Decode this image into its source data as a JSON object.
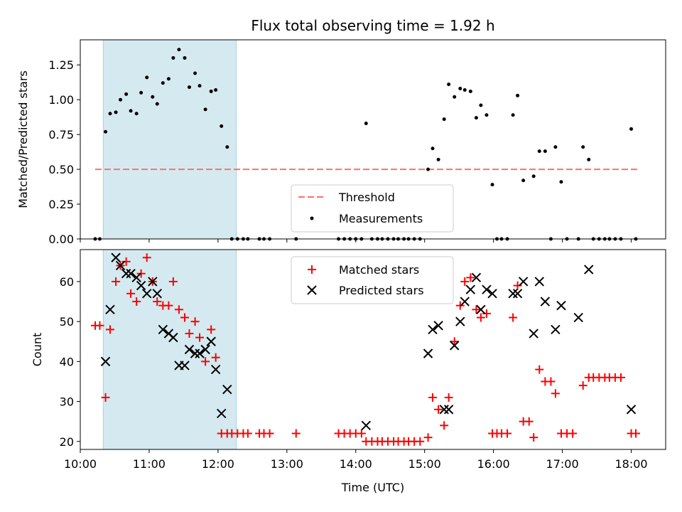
{
  "chart_data": [
    {
      "type": "scatter",
      "title": "Flux total observing time = 1.92 h",
      "xlabel": "",
      "ylabel": "Matched/Predicted stars",
      "xlim": [
        "10:00",
        "18:30"
      ],
      "ylim": [
        0,
        1.43
      ],
      "yticks": [
        "0.00",
        "0.25",
        "0.50",
        "0.75",
        "1.00",
        "1.25"
      ],
      "shaded_region": {
        "x": [
          "10:20",
          "12:16"
        ],
        "color": "#d4eaf0"
      },
      "threshold": {
        "name": "Threshold",
        "y": 0.5,
        "x": [
          "10:13",
          "18:06"
        ],
        "color": "#ff7070"
      },
      "legend": {
        "placement": "lower-center",
        "entries": [
          "Threshold",
          "Measurements"
        ]
      },
      "series": [
        {
          "name": "Measurements",
          "marker": "dot",
          "color": "#000000",
          "points": [
            [
              "10:13",
              0
            ],
            [
              "10:17",
              0
            ],
            [
              "10:22",
              0.77
            ],
            [
              "10:26",
              0.9
            ],
            [
              "10:31",
              0.91
            ],
            [
              "10:35",
              1.0
            ],
            [
              "10:40",
              1.04
            ],
            [
              "10:44",
              0.92
            ],
            [
              "10:49",
              0.9
            ],
            [
              "10:53",
              1.05
            ],
            [
              "10:58",
              1.16
            ],
            [
              "11:03",
              1.02
            ],
            [
              "11:07",
              0.97
            ],
            [
              "11:12",
              1.12
            ],
            [
              "11:17",
              1.15
            ],
            [
              "11:21",
              1.3
            ],
            [
              "11:26",
              1.36
            ],
            [
              "11:31",
              1.3
            ],
            [
              "11:35",
              1.09
            ],
            [
              "11:40",
              1.19
            ],
            [
              "11:44",
              1.1
            ],
            [
              "11:49",
              0.93
            ],
            [
              "11:54",
              1.06
            ],
            [
              "11:58",
              1.07
            ],
            [
              "12:03",
              0.81
            ],
            [
              "12:08",
              0.66
            ],
            [
              "12:12",
              0
            ],
            [
              "12:17",
              0
            ],
            [
              "12:22",
              0
            ],
            [
              "12:26",
              0
            ],
            [
              "12:36",
              0
            ],
            [
              "12:40",
              0
            ],
            [
              "12:45",
              0
            ],
            [
              "13:08",
              0
            ],
            [
              "13:45",
              0
            ],
            [
              "13:50",
              0
            ],
            [
              "13:55",
              0
            ],
            [
              "14:00",
              0
            ],
            [
              "14:05",
              0
            ],
            [
              "14:09",
              0.83
            ],
            [
              "14:14",
              0
            ],
            [
              "14:19",
              0
            ],
            [
              "14:23",
              0
            ],
            [
              "14:28",
              0
            ],
            [
              "14:33",
              0
            ],
            [
              "14:37",
              0
            ],
            [
              "14:42",
              0
            ],
            [
              "14:46",
              0
            ],
            [
              "14:51",
              0
            ],
            [
              "14:56",
              0
            ],
            [
              "15:03",
              0.5
            ],
            [
              "15:07",
              0.65
            ],
            [
              "15:12",
              0.57
            ],
            [
              "15:17",
              0.86
            ],
            [
              "15:21",
              1.11
            ],
            [
              "15:26",
              1.02
            ],
            [
              "15:31",
              1.08
            ],
            [
              "15:35",
              1.07
            ],
            [
              "15:40",
              1.06
            ],
            [
              "15:45",
              0.87
            ],
            [
              "15:49",
              0.96
            ],
            [
              "15:54",
              0.89
            ],
            [
              "15:59",
              0.39
            ],
            [
              "16:03",
              0
            ],
            [
              "16:07",
              0
            ],
            [
              "16:12",
              0
            ],
            [
              "16:17",
              0.89
            ],
            [
              "16:21",
              1.03
            ],
            [
              "16:26",
              0.42
            ],
            [
              "16:35",
              0.45
            ],
            [
              "16:40",
              0.63
            ],
            [
              "16:45",
              0.63
            ],
            [
              "16:50",
              0
            ],
            [
              "16:54",
              0.66
            ],
            [
              "16:59",
              0.41
            ],
            [
              "17:04",
              0
            ],
            [
              "17:14",
              0
            ],
            [
              "17:18",
              0.66
            ],
            [
              "17:23",
              0.57
            ],
            [
              "17:27",
              0
            ],
            [
              "17:32",
              0
            ],
            [
              "17:37",
              0
            ],
            [
              "17:41",
              0
            ],
            [
              "17:46",
              0
            ],
            [
              "17:51",
              0
            ],
            [
              "18:00",
              0.79
            ],
            [
              "18:04",
              0
            ]
          ]
        }
      ]
    },
    {
      "type": "scatter",
      "title": "",
      "xlabel": "Time (UTC)",
      "ylabel": "Count",
      "xlim": [
        "10:00",
        "18:30"
      ],
      "ylim": [
        18,
        68
      ],
      "xticks": [
        "10:00",
        "11:00",
        "12:00",
        "13:00",
        "14:00",
        "15:00",
        "16:00",
        "17:00",
        "18:00"
      ],
      "yticks": [
        "20",
        "30",
        "40",
        "50",
        "60"
      ],
      "shaded_region": {
        "x": [
          "10:20",
          "12:16"
        ],
        "color": "#d4eaf0"
      },
      "legend": {
        "placement": "upper-center",
        "entries": [
          "Matched stars",
          "Predicted stars"
        ]
      },
      "series": [
        {
          "name": "Matched stars",
          "marker": "plus",
          "color": "#ff0000",
          "points": [
            [
              "10:13",
              49
            ],
            [
              "10:17",
              49
            ],
            [
              "10:22",
              31
            ],
            [
              "10:26",
              48
            ],
            [
              "10:31",
              60
            ],
            [
              "10:35",
              64
            ],
            [
              "10:40",
              65
            ],
            [
              "10:44",
              57
            ],
            [
              "10:49",
              55
            ],
            [
              "10:53",
              62
            ],
            [
              "10:58",
              66
            ],
            [
              "11:03",
              60
            ],
            [
              "11:07",
              55
            ],
            [
              "11:12",
              54
            ],
            [
              "11:17",
              54
            ],
            [
              "11:21",
              60
            ],
            [
              "11:26",
              53
            ],
            [
              "11:31",
              51
            ],
            [
              "11:35",
              47
            ],
            [
              "11:40",
              50
            ],
            [
              "11:44",
              46
            ],
            [
              "11:49",
              40
            ],
            [
              "11:54",
              48
            ],
            [
              "11:58",
              41
            ],
            [
              "12:03",
              22
            ],
            [
              "12:08",
              22
            ],
            [
              "12:12",
              22
            ],
            [
              "12:17",
              22
            ],
            [
              "12:22",
              22
            ],
            [
              "12:26",
              22
            ],
            [
              "12:36",
              22
            ],
            [
              "12:40",
              22
            ],
            [
              "12:45",
              22
            ],
            [
              "13:08",
              22
            ],
            [
              "13:45",
              22
            ],
            [
              "13:50",
              22
            ],
            [
              "13:55",
              22
            ],
            [
              "14:00",
              22
            ],
            [
              "14:05",
              22
            ],
            [
              "14:09",
              20
            ],
            [
              "14:14",
              20
            ],
            [
              "14:19",
              20
            ],
            [
              "14:23",
              20
            ],
            [
              "14:28",
              20
            ],
            [
              "14:33",
              20
            ],
            [
              "14:37",
              20
            ],
            [
              "14:42",
              20
            ],
            [
              "14:46",
              20
            ],
            [
              "14:51",
              20
            ],
            [
              "14:56",
              20
            ],
            [
              "15:03",
              21
            ],
            [
              "15:07",
              31
            ],
            [
              "15:12",
              28
            ],
            [
              "15:17",
              24
            ],
            [
              "15:21",
              31
            ],
            [
              "15:26",
              45
            ],
            [
              "15:31",
              54
            ],
            [
              "15:35",
              60
            ],
            [
              "15:40",
              61
            ],
            [
              "15:45",
              53
            ],
            [
              "15:49",
              51
            ],
            [
              "15:54",
              52
            ],
            [
              "15:59",
              22
            ],
            [
              "16:03",
              22
            ],
            [
              "16:07",
              22
            ],
            [
              "16:12",
              22
            ],
            [
              "16:17",
              51
            ],
            [
              "16:21",
              59
            ],
            [
              "16:26",
              25
            ],
            [
              "16:31",
              25
            ],
            [
              "16:35",
              21
            ],
            [
              "16:40",
              38
            ],
            [
              "16:45",
              35
            ],
            [
              "16:50",
              35
            ],
            [
              "16:54",
              32
            ],
            [
              "16:59",
              22
            ],
            [
              "17:04",
              22
            ],
            [
              "17:09",
              22
            ],
            [
              "17:18",
              34
            ],
            [
              "17:23",
              36
            ],
            [
              "17:27",
              36
            ],
            [
              "17:32",
              36
            ],
            [
              "17:37",
              36
            ],
            [
              "17:41",
              36
            ],
            [
              "17:46",
              36
            ],
            [
              "17:51",
              36
            ],
            [
              "18:00",
              22
            ],
            [
              "18:04",
              22
            ]
          ]
        },
        {
          "name": "Predicted stars",
          "marker": "x",
          "color": "#000000",
          "points": [
            [
              "10:22",
              40
            ],
            [
              "10:26",
              53
            ],
            [
              "10:31",
              66
            ],
            [
              "10:35",
              64
            ],
            [
              "10:40",
              62
            ],
            [
              "10:44",
              62
            ],
            [
              "10:49",
              61
            ],
            [
              "10:53",
              59
            ],
            [
              "10:58",
              57
            ],
            [
              "11:03",
              60
            ],
            [
              "11:07",
              57
            ],
            [
              "11:12",
              48
            ],
            [
              "11:17",
              47
            ],
            [
              "11:21",
              46
            ],
            [
              "11:26",
              39
            ],
            [
              "11:31",
              39
            ],
            [
              "11:35",
              43
            ],
            [
              "11:40",
              42
            ],
            [
              "11:44",
              42
            ],
            [
              "11:49",
              43
            ],
            [
              "11:54",
              45
            ],
            [
              "11:58",
              38
            ],
            [
              "12:03",
              27
            ],
            [
              "12:08",
              33
            ],
            [
              "14:09",
              24
            ],
            [
              "15:03",
              42
            ],
            [
              "15:07",
              48
            ],
            [
              "15:12",
              49
            ],
            [
              "15:17",
              28
            ],
            [
              "15:21",
              28
            ],
            [
              "15:26",
              44
            ],
            [
              "15:31",
              50
            ],
            [
              "15:35",
              55
            ],
            [
              "15:40",
              58
            ],
            [
              "15:45",
              61
            ],
            [
              "15:49",
              53
            ],
            [
              "15:54",
              58
            ],
            [
              "15:59",
              57
            ],
            [
              "16:17",
              57
            ],
            [
              "16:21",
              57
            ],
            [
              "16:26",
              60
            ],
            [
              "16:35",
              47
            ],
            [
              "16:40",
              60
            ],
            [
              "16:45",
              55
            ],
            [
              "16:54",
              48
            ],
            [
              "16:59",
              54
            ],
            [
              "17:14",
              51
            ],
            [
              "17:23",
              63
            ],
            [
              "18:00",
              28
            ]
          ]
        }
      ]
    }
  ]
}
